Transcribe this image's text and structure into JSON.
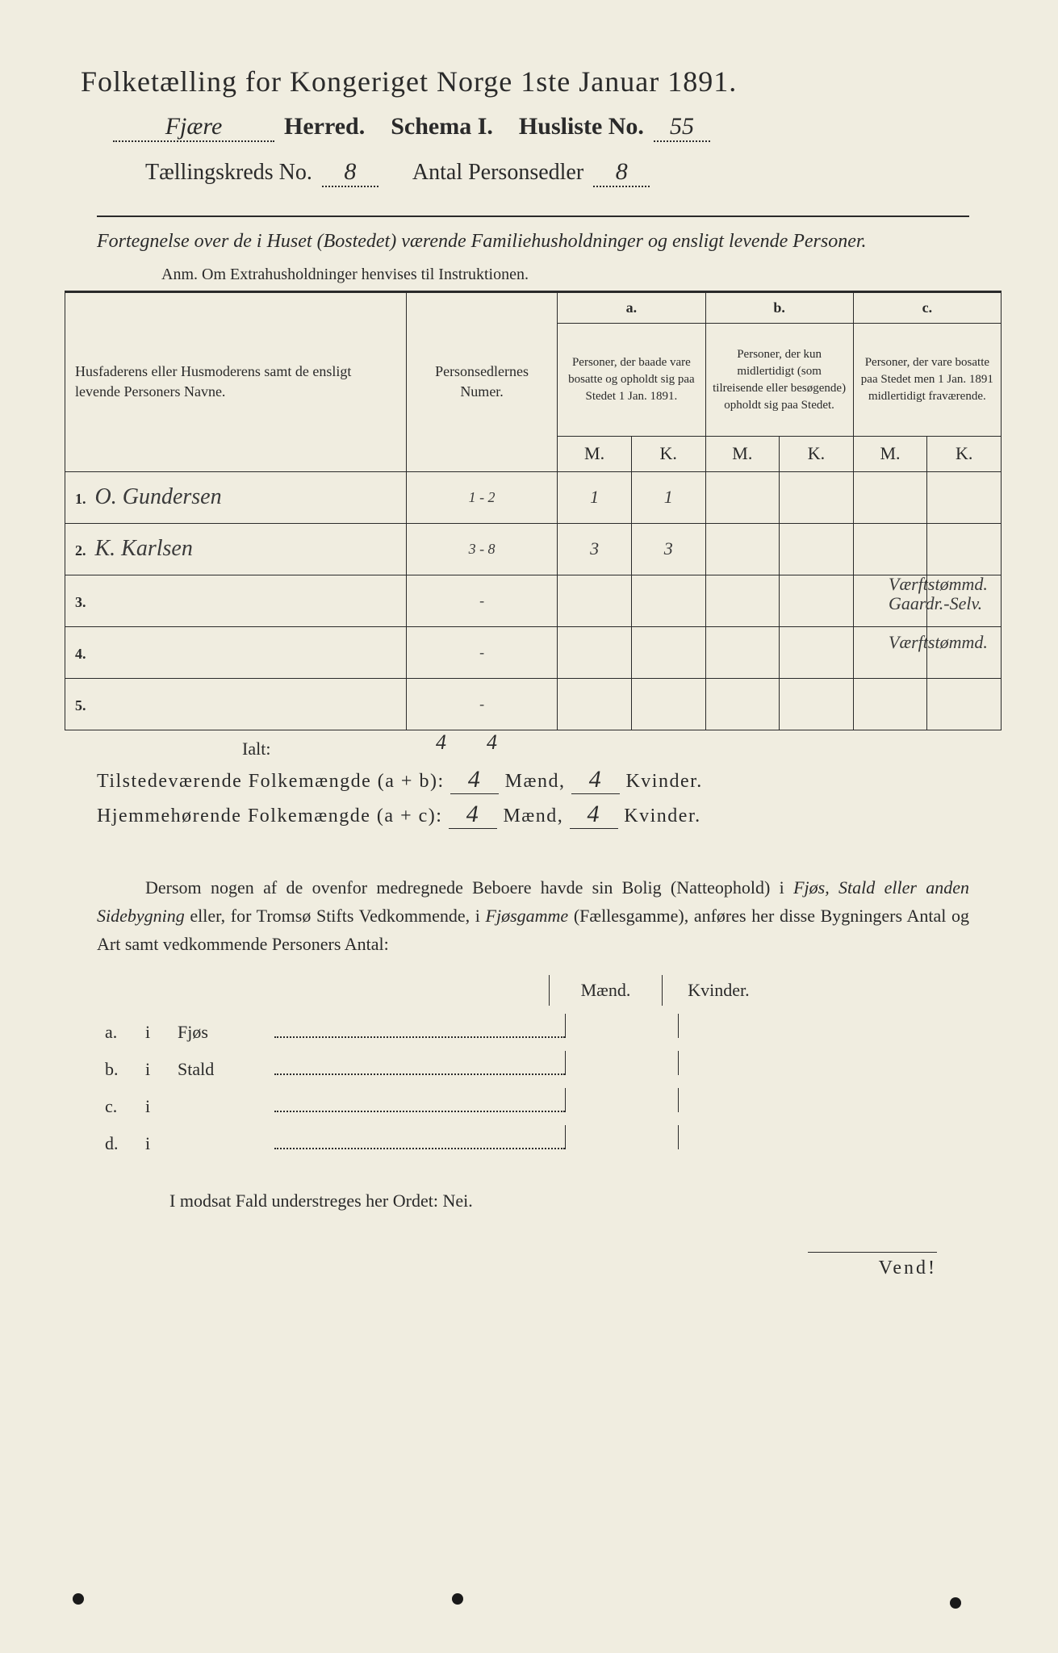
{
  "header": {
    "title": "Folketælling for Kongeriget Norge 1ste Januar 1891.",
    "herred_value": "Fjære",
    "herred_label": "Herred.",
    "schema_label": "Schema I.",
    "husliste_label": "Husliste No.",
    "husliste_value": "55",
    "kreds_label": "Tællingskreds No.",
    "kreds_value": "8",
    "antal_label": "Antal Personsedler",
    "antal_value": "8"
  },
  "subtitle": "Fortegnelse over de i Huset (Bostedet) værende Familiehusholdninger og ensligt levende Personer.",
  "anm": "Anm.   Om Extrahusholdninger henvises til Instruktionen.",
  "table": {
    "col1_header": "Husfaderens eller Husmoderens samt de ensligt levende Personers Navne.",
    "col2_header": "Personsedlernes Numer.",
    "col_a_letter": "a.",
    "col_a_header": "Personer, der baade vare bosatte og opholdt sig paa Stedet 1 Jan. 1891.",
    "col_b_letter": "b.",
    "col_b_header": "Personer, der kun midlertidigt (som tilreisende eller besøgende) opholdt sig paa Stedet.",
    "col_c_letter": "c.",
    "col_c_header": "Personer, der vare bosatte paa Stedet men 1 Jan. 1891 midlertidigt fraværende.",
    "m_label": "M.",
    "k_label": "K.",
    "rows": [
      {
        "num": "1.",
        "name": "O. Gundersen",
        "sedler": "1 - 2",
        "a_m": "1",
        "a_k": "1",
        "b_m": "",
        "b_k": "",
        "c_m": "",
        "c_k": ""
      },
      {
        "num": "2.",
        "name": "K. Karlsen",
        "sedler": "3 - 8",
        "a_m": "3",
        "a_k": "3",
        "b_m": "",
        "b_k": "",
        "c_m": "",
        "c_k": ""
      },
      {
        "num": "3.",
        "name": "",
        "sedler": "-",
        "a_m": "",
        "a_k": "",
        "b_m": "",
        "b_k": "",
        "c_m": "",
        "c_k": ""
      },
      {
        "num": "4.",
        "name": "",
        "sedler": "-",
        "a_m": "",
        "a_k": "",
        "b_m": "",
        "b_k": "",
        "c_m": "",
        "c_k": ""
      },
      {
        "num": "5.",
        "name": "",
        "sedler": "-",
        "a_m": "",
        "a_k": "",
        "b_m": "",
        "b_k": "",
        "c_m": "",
        "c_k": ""
      }
    ],
    "marginal_notes": {
      "row1": "Værftstømmd. Gaardr.-Selv.",
      "row2": "Værftstømmd."
    }
  },
  "totals": {
    "ialt_label": "Ialt:",
    "ialt_m": "4",
    "ialt_k": "4",
    "line1_label": "Tilstedeværende Folkemængde (a + b):",
    "line1_m": "4",
    "line1_mid": "Mænd,",
    "line1_k": "4",
    "line1_end": "Kvinder.",
    "line2_label": "Hjemmehørende Folkemængde (a + c):",
    "line2_m": "4",
    "line2_k": "4"
  },
  "paragraph": {
    "text1": "Dersom nogen af de ovenfor medregnede Beboere havde sin Bolig (Natteophold) i ",
    "ital1": "Fjøs, Stald eller anden Sidebygning",
    "text2": " eller, for Tromsø Stifts Vedkommende, i ",
    "ital2": "Fjøsgamme",
    "text3": " (Fællesgamme), anføres her disse Bygningers Antal og Art samt vedkommende Personers Antal:"
  },
  "lower_table": {
    "maend_label": "Mænd.",
    "kvinder_label": "Kvinder.",
    "rows": [
      {
        "lbl": "a.",
        "i": "i",
        "type": "Fjøs"
      },
      {
        "lbl": "b.",
        "i": "i",
        "type": "Stald"
      },
      {
        "lbl": "c.",
        "i": "i",
        "type": ""
      },
      {
        "lbl": "d.",
        "i": "i",
        "type": ""
      }
    ]
  },
  "modsat": "I modsat Fald understreges her Ordet: Nei.",
  "vend": "Vend!",
  "colors": {
    "background": "#f0ede0",
    "text": "#2a2a2a",
    "handwriting": "#3a3a3a"
  }
}
